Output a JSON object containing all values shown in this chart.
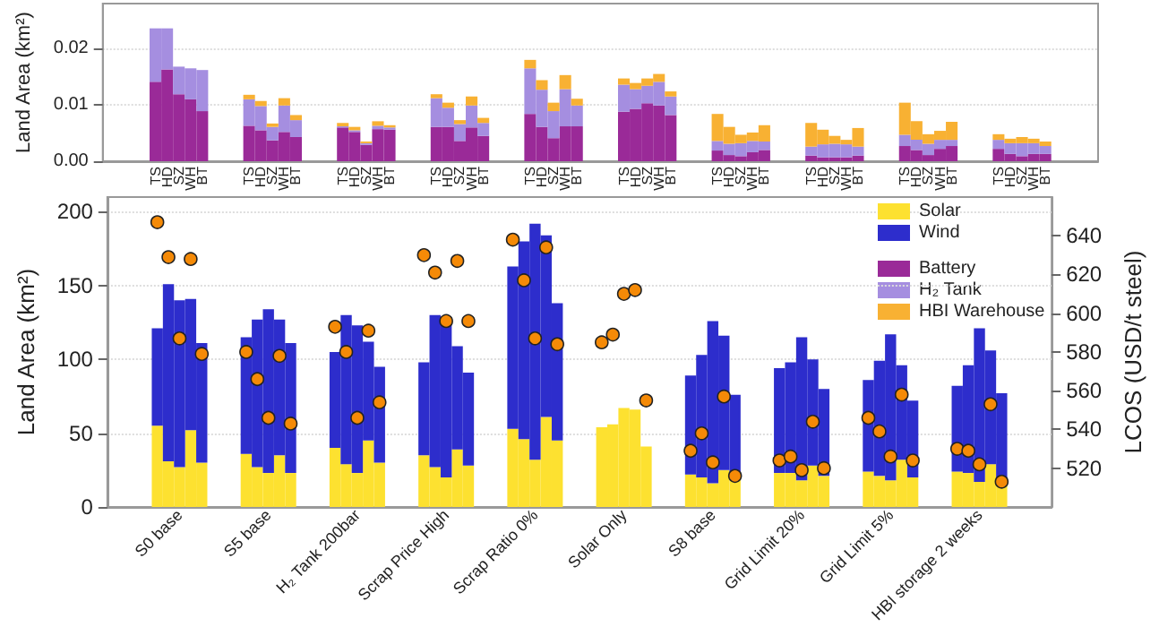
{
  "chart_data": [
    {
      "type": "bar",
      "ylabel": "Land Area (km²)",
      "stacked": true,
      "grid": "y",
      "legend": "bottom right",
      "categories": [
        null,
        null,
        null,
        null,
        "TS",
        "HD",
        "SZ",
        "WH",
        "BT",
        null,
        null,
        null,
        "TS",
        "HD",
        "SZ",
        "WH",
        "BT",
        null,
        null,
        null,
        "TS",
        "HD",
        "SZ",
        "WH",
        "BT",
        null,
        null,
        null,
        "TS",
        "HD",
        "SZ",
        "WH",
        "BT",
        null,
        null,
        null,
        "TS",
        "HD",
        "SZ",
        "WH",
        "BT",
        null,
        null,
        null,
        "TS",
        "HD",
        "SZ",
        "WH",
        "BT",
        null,
        null,
        null,
        "TS",
        "HD",
        "SZ",
        "WH",
        "BT",
        null,
        null,
        null,
        "TS",
        "HD",
        "SZ",
        "WH",
        "BT",
        null,
        null,
        null,
        "TS",
        "HD",
        "SZ",
        "WH",
        "BT",
        null,
        null,
        null,
        "TS",
        "HD",
        "SZ",
        "WH",
        "BT",
        null,
        null,
        null,
        null
      ],
      "ylim": [
        0,
        0.028
      ],
      "yticks": [
        {
          "value": 0,
          "label": "0.00"
        },
        0.01,
        0.02
      ],
      "series": [
        {
          "name": "Battery",
          "color": "#9a2a98",
          "values": [
            null,
            null,
            null,
            null,
            0.0141,
            0.0163,
            0.0119,
            0.011,
            0.0089,
            null,
            null,
            null,
            0.0063,
            0.0055,
            0.0037,
            0.0052,
            0.0043,
            null,
            null,
            null,
            0.006,
            0.0052,
            0.0029,
            0.0057,
            0.0056,
            null,
            null,
            null,
            0.0061,
            0.0061,
            0.0036,
            0.006,
            0.0045,
            null,
            null,
            null,
            0.0084,
            0.0061,
            0.0041,
            0.0062,
            0.0062,
            null,
            null,
            null,
            0.0088,
            0.0093,
            0.0103,
            0.0099,
            0.0082,
            null,
            null,
            null,
            0.0019,
            0.0011,
            0.0009,
            0.0016,
            0.002,
            null,
            null,
            null,
            0.001,
            0.0007,
            0.0007,
            0.0007,
            0.001,
            null,
            null,
            null,
            0.0027,
            0.002,
            0.0011,
            0.0022,
            0.0027,
            null,
            null,
            null,
            0.0022,
            0.0013,
            0.0009,
            0.0013,
            0.0013,
            null,
            null,
            null,
            null
          ]
        },
        {
          "name": "H₂ Tank",
          "color": "#a58ee0",
          "values": [
            null,
            null,
            null,
            null,
            0.0095,
            0.0073,
            0.0049,
            0.0055,
            0.0073,
            null,
            null,
            null,
            0.0047,
            0.0043,
            0.0024,
            0.0047,
            0.003,
            null,
            null,
            null,
            0.0002,
            0.0003,
            0.0003,
            0.0006,
            0.0004,
            null,
            null,
            null,
            0.0051,
            0.0034,
            0.003,
            0.0039,
            0.0023,
            null,
            null,
            null,
            0.0081,
            0.0066,
            0.0048,
            0.0066,
            0.0037,
            null,
            null,
            null,
            0.0048,
            0.0035,
            0.0031,
            0.0042,
            0.0033,
            null,
            null,
            null,
            0.0017,
            0.002,
            0.0023,
            0.002,
            0.0015,
            null,
            null,
            null,
            0.0016,
            0.0023,
            0.0024,
            0.0023,
            0.0016,
            null,
            null,
            null,
            0.002,
            0.0018,
            0.002,
            0.0016,
            0.0011,
            null,
            null,
            null,
            0.0016,
            0.0019,
            0.0023,
            0.0019,
            0.0014,
            null,
            null,
            null,
            null
          ]
        },
        {
          "name": "HBI Warehouse",
          "color": "#f8b133",
          "values": [
            null,
            null,
            null,
            null,
            0,
            0,
            0,
            0,
            0,
            null,
            null,
            null,
            0.0008,
            0.0009,
            0.0006,
            0.0013,
            0.0009,
            null,
            null,
            null,
            0.0006,
            0.0006,
            0.0003,
            0.0008,
            0.0004,
            null,
            null,
            null,
            0.0007,
            0.0009,
            0.0007,
            0.0016,
            0.0009,
            null,
            null,
            null,
            0.0015,
            0.0017,
            0.0015,
            0.0025,
            0.0012,
            null,
            null,
            null,
            0.0011,
            0.0011,
            0.0013,
            0.0014,
            0.0009,
            null,
            null,
            null,
            0.0048,
            0.003,
            0.0015,
            0.0015,
            0.0029,
            null,
            null,
            null,
            0.0042,
            0.0026,
            0.0014,
            0.0008,
            0.0033,
            null,
            null,
            null,
            0.0057,
            0.0033,
            0.0017,
            0.0016,
            0.0032,
            null,
            null,
            null,
            0.001,
            0.0008,
            0.0011,
            0.0008,
            0.0008,
            null,
            null,
            null,
            null
          ]
        }
      ]
    },
    {
      "type": "bar",
      "ylabel": "Land Area (km²)",
      "y2label": "LCOS (USD/t steel)",
      "stacked": true,
      "grid": "y",
      "legend": "top right",
      "marker": "circle",
      "categories": [
        null,
        null,
        null,
        null,
        null,
        null,
        "S0 base",
        null,
        null,
        null,
        null,
        null,
        null,
        null,
        "S5 base",
        null,
        null,
        null,
        null,
        null,
        null,
        null,
        "H₂ Tank 200bar",
        null,
        null,
        null,
        null,
        null,
        null,
        null,
        "Scrap Price High",
        null,
        null,
        null,
        null,
        null,
        null,
        null,
        "Scrap Ratio 0%",
        null,
        null,
        null,
        null,
        null,
        null,
        null,
        "Solar Only",
        null,
        null,
        null,
        null,
        null,
        null,
        null,
        "S8 base",
        null,
        null,
        null,
        null,
        null,
        null,
        null,
        "Grid Limit 20%",
        null,
        null,
        null,
        null,
        null,
        null,
        null,
        "Grid Limit 5%",
        null,
        null,
        null,
        null,
        null,
        null,
        null,
        "HBI storage 2 weeks",
        null,
        null,
        null,
        null,
        null,
        null
      ],
      "ylim": [
        0,
        210
      ],
      "yticks": [
        0,
        50,
        100,
        150,
        200
      ],
      "y2lim": [
        500,
        660
      ],
      "y2ticks": [
        520,
        540,
        560,
        580,
        600,
        620,
        640
      ],
      "series": [
        {
          "name": "Solar",
          "color": "#fde130",
          "values": [
            null,
            null,
            null,
            null,
            55,
            31,
            27,
            52,
            30,
            null,
            null,
            null,
            36,
            27,
            23,
            35,
            23,
            null,
            null,
            null,
            40,
            29,
            23,
            45,
            30,
            null,
            null,
            null,
            35,
            27,
            20,
            39,
            28,
            null,
            null,
            null,
            53,
            46,
            32,
            61,
            45,
            null,
            null,
            null,
            54,
            56,
            67,
            66,
            41,
            null,
            null,
            null,
            22,
            20,
            16,
            25,
            20,
            null,
            null,
            null,
            23,
            23,
            18,
            28,
            21,
            null,
            null,
            null,
            24,
            21,
            18,
            32,
            20,
            null,
            null,
            null,
            24,
            23,
            17,
            29,
            19,
            null,
            null,
            null,
            null
          ]
        },
        {
          "name": "Wind",
          "color": "#2d2dcc",
          "values": [
            null,
            null,
            null,
            null,
            66,
            120,
            113,
            89,
            81,
            null,
            null,
            null,
            79,
            100,
            111,
            92,
            88,
            null,
            null,
            null,
            65,
            101,
            100,
            67,
            65,
            null,
            null,
            null,
            63,
            103,
            104,
            70,
            63,
            null,
            null,
            null,
            110,
            134,
            160,
            123,
            93,
            null,
            null,
            null,
            0,
            0,
            0,
            0,
            0,
            null,
            null,
            null,
            67,
            83,
            110,
            91,
            56,
            null,
            null,
            null,
            71,
            75,
            97,
            72,
            59,
            null,
            null,
            null,
            62,
            78,
            99,
            64,
            52,
            null,
            null,
            null,
            58,
            73,
            104,
            77,
            58,
            null,
            null,
            null,
            null
          ]
        },
        {
          "type": "scatter",
          "axis": "y2",
          "color": "#f58a07",
          "values": [
            null,
            null,
            null,
            null,
            647,
            629,
            587,
            628,
            579,
            null,
            null,
            null,
            580,
            566,
            546,
            578,
            543,
            null,
            null,
            null,
            593,
            580,
            546,
            591,
            554,
            null,
            null,
            null,
            630,
            621,
            596,
            627,
            596,
            null,
            null,
            null,
            638,
            617,
            587,
            634,
            584,
            null,
            null,
            null,
            585,
            589,
            610,
            612,
            555,
            null,
            null,
            null,
            529,
            538,
            523,
            557,
            516,
            null,
            null,
            null,
            524,
            526,
            519,
            544,
            520,
            null,
            null,
            null,
            546,
            539,
            526,
            558,
            524,
            null,
            null,
            null,
            530,
            529,
            522,
            553,
            513,
            null,
            null,
            null,
            null
          ]
        }
      ]
    }
  ]
}
